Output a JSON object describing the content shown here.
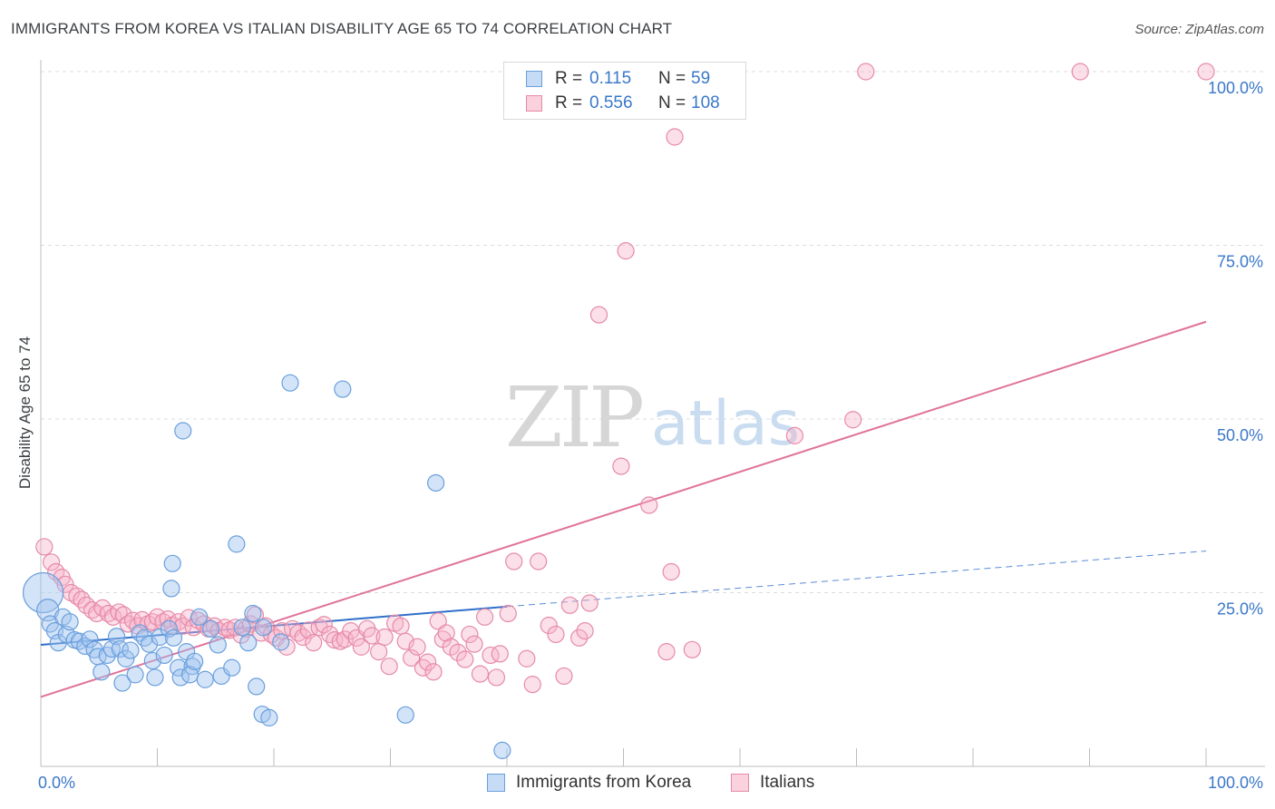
{
  "title": "IMMIGRANTS FROM KOREA VS ITALIAN DISABILITY AGE 65 TO 74 CORRELATION CHART",
  "source": "Source: ZipAtlas.com",
  "watermark": {
    "zip": "ZIP",
    "atlas": "atlas"
  },
  "legend": {
    "rows": [
      {
        "r_label": "R =",
        "r_value": "0.115",
        "n_label": "N =",
        "n_value": "59"
      },
      {
        "r_label": "R =",
        "r_value": "0.556",
        "n_label": "N =",
        "n_value": "108"
      }
    ]
  },
  "bottom_legend": [
    "Immigrants from Korea",
    "Italians"
  ],
  "colors": {
    "korea_fill": "rgba(160,196,240,0.45)",
    "korea_stroke": "#6a9fdc",
    "korea_line": "#2f6fcb",
    "italians_fill": "rgba(248,178,200,0.40)",
    "italians_stroke": "#e58aa8",
    "italians_line": "#e0729a",
    "tick_label": "#3a78c9",
    "grid": "#dcdcdc"
  },
  "chart_data": {
    "type": "scatter",
    "title": "IMMIGRANTS FROM KOREA VS ITALIAN DISABILITY AGE 65 TO 74 CORRELATION CHART",
    "xlabel": "",
    "ylabel": "Disability Age 65 to 74",
    "xlim": [
      0,
      100
    ],
    "ylim": [
      0,
      100
    ],
    "x_tick_labels": [
      "0.0%",
      "100.0%"
    ],
    "y_ticks": [
      25,
      50,
      75,
      100
    ],
    "y_tick_labels": [
      "25.0%",
      "50.0%",
      "75.0%",
      "100.0%"
    ],
    "grid": true,
    "legend_position": "top-center",
    "series": [
      {
        "name": "Immigrants from Korea",
        "R": 0.115,
        "N": 59,
        "trend": {
          "x": [
            0,
            40
          ],
          "y": [
            17.5,
            23.0
          ],
          "dashed_extension": {
            "x": [
              40,
              100
            ],
            "y": [
              23.0,
              31.0
            ]
          }
        },
        "points": [
          [
            0.2,
            25.0,
            22
          ],
          [
            0.6,
            22.5,
            12
          ],
          [
            0.8,
            20.5,
            9
          ],
          [
            1.2,
            19.5,
            9
          ],
          [
            1.5,
            17.8,
            9
          ],
          [
            1.9,
            21.5,
            9
          ],
          [
            2.2,
            19.0,
            9
          ],
          [
            2.5,
            20.8,
            9
          ],
          [
            2.9,
            18.2,
            9
          ],
          [
            3.3,
            18.0,
            9
          ],
          [
            3.8,
            17.3,
            9
          ],
          [
            4.2,
            18.3,
            9
          ],
          [
            4.6,
            16.8,
            9
          ],
          [
            4.9,
            15.8,
            9
          ],
          [
            5.2,
            13.6,
            9
          ],
          [
            5.7,
            16.0,
            9
          ],
          [
            6.1,
            16.9,
            9
          ],
          [
            6.5,
            18.7,
            9
          ],
          [
            6.8,
            16.9,
            9
          ],
          [
            7.0,
            12.0,
            9
          ],
          [
            7.3,
            15.5,
            9
          ],
          [
            7.7,
            16.7,
            9
          ],
          [
            8.1,
            13.2,
            9
          ],
          [
            8.5,
            19.2,
            9
          ],
          [
            8.9,
            18.5,
            9
          ],
          [
            9.3,
            17.6,
            9
          ],
          [
            9.6,
            15.2,
            9
          ],
          [
            9.8,
            12.8,
            9
          ],
          [
            10.2,
            18.6,
            9
          ],
          [
            10.6,
            16.0,
            9
          ],
          [
            11.0,
            19.8,
            9
          ],
          [
            11.4,
            18.5,
            9
          ],
          [
            11.8,
            14.2,
            9
          ],
          [
            12.0,
            12.8,
            9
          ],
          [
            12.5,
            16.5,
            9
          ],
          [
            13.0,
            14.4,
            9
          ],
          [
            12.2,
            48.3,
            9
          ],
          [
            11.3,
            29.2,
            9
          ],
          [
            11.2,
            25.6,
            9
          ],
          [
            12.8,
            13.2,
            9
          ],
          [
            13.2,
            15.1,
            9
          ],
          [
            13.6,
            21.5,
            9
          ],
          [
            14.1,
            12.5,
            9
          ],
          [
            14.6,
            19.8,
            9
          ],
          [
            15.2,
            17.5,
            9
          ],
          [
            15.5,
            13.0,
            9
          ],
          [
            16.4,
            14.2,
            9
          ],
          [
            16.8,
            32.0,
            9
          ],
          [
            17.3,
            20.0,
            9
          ],
          [
            17.8,
            17.8,
            9
          ],
          [
            18.2,
            22.0,
            9
          ],
          [
            18.5,
            11.5,
            9
          ],
          [
            19.1,
            20.0,
            9
          ],
          [
            19.0,
            7.5,
            9
          ],
          [
            19.6,
            7.0,
            9
          ],
          [
            20.6,
            17.9,
            9
          ],
          [
            21.4,
            55.2,
            9
          ],
          [
            25.9,
            54.3,
            9
          ],
          [
            33.9,
            40.8,
            9
          ],
          [
            31.3,
            7.4,
            9
          ],
          [
            39.6,
            2.3,
            9
          ]
        ]
      },
      {
        "name": "Italians",
        "R": 0.556,
        "N": 108,
        "trend": {
          "x": [
            0,
            100
          ],
          "y": [
            10.0,
            64.0
          ]
        },
        "points": [
          [
            0.3,
            31.6,
            9
          ],
          [
            0.9,
            29.4,
            9
          ],
          [
            1.3,
            28.0,
            9
          ],
          [
            1.8,
            27.2,
            9
          ],
          [
            2.1,
            26.2,
            9
          ],
          [
            2.6,
            25.0,
            9
          ],
          [
            3.1,
            24.5,
            9
          ],
          [
            3.5,
            24.0,
            9
          ],
          [
            3.9,
            23.2,
            9
          ],
          [
            4.4,
            22.5,
            9
          ],
          [
            4.8,
            22.0,
            9
          ],
          [
            5.3,
            22.8,
            9
          ],
          [
            5.8,
            22.0,
            9
          ],
          [
            6.2,
            21.5,
            9
          ],
          [
            6.7,
            22.2,
            9
          ],
          [
            7.1,
            21.8,
            9
          ],
          [
            7.5,
            20.5,
            9
          ],
          [
            7.9,
            21.0,
            9
          ],
          [
            8.3,
            20.2,
            9
          ],
          [
            8.7,
            21.1,
            9
          ],
          [
            9.2,
            20.5,
            9
          ],
          [
            9.6,
            20.8,
            9
          ],
          [
            10.0,
            21.5,
            9
          ],
          [
            10.5,
            20.8,
            9
          ],
          [
            10.9,
            21.2,
            9
          ],
          [
            11.3,
            20.3,
            9
          ],
          [
            11.8,
            20.8,
            9
          ],
          [
            12.2,
            20.2,
            9
          ],
          [
            12.7,
            21.4,
            9
          ],
          [
            13.1,
            20.0,
            9
          ],
          [
            13.5,
            21.0,
            9
          ],
          [
            14.0,
            20.5,
            9
          ],
          [
            14.4,
            19.8,
            9
          ],
          [
            14.9,
            20.2,
            9
          ],
          [
            15.3,
            19.5,
            9
          ],
          [
            15.8,
            20.0,
            9
          ],
          [
            16.2,
            19.6,
            9
          ],
          [
            16.7,
            20.0,
            9
          ],
          [
            17.2,
            18.9,
            9
          ],
          [
            17.6,
            19.8,
            9
          ],
          [
            18.0,
            20.5,
            9
          ],
          [
            18.4,
            21.8,
            9
          ],
          [
            18.9,
            19.2,
            9
          ],
          [
            19.3,
            20.2,
            9
          ],
          [
            19.8,
            19.0,
            9
          ],
          [
            20.2,
            18.5,
            9
          ],
          [
            20.7,
            19.5,
            9
          ],
          [
            21.1,
            17.2,
            9
          ],
          [
            21.6,
            19.8,
            9
          ],
          [
            22.1,
            19.2,
            9
          ],
          [
            22.5,
            18.6,
            9
          ],
          [
            23.0,
            19.6,
            9
          ],
          [
            23.4,
            17.8,
            9
          ],
          [
            23.9,
            20.0,
            9
          ],
          [
            24.3,
            20.4,
            9
          ],
          [
            24.8,
            19.0,
            9
          ],
          [
            25.2,
            18.2,
            9
          ],
          [
            25.7,
            18.0,
            9
          ],
          [
            26.1,
            18.3,
            9
          ],
          [
            26.6,
            19.5,
            9
          ],
          [
            27.1,
            18.5,
            9
          ],
          [
            27.5,
            17.2,
            9
          ],
          [
            28.0,
            19.8,
            9
          ],
          [
            28.4,
            18.8,
            9
          ],
          [
            29.0,
            16.5,
            9
          ],
          [
            29.5,
            18.6,
            9
          ],
          [
            29.9,
            14.4,
            9
          ],
          [
            30.4,
            20.6,
            9
          ],
          [
            30.9,
            20.2,
            9
          ],
          [
            31.3,
            18.0,
            9
          ],
          [
            31.8,
            15.6,
            9
          ],
          [
            32.3,
            17.2,
            9
          ],
          [
            32.8,
            14.2,
            9
          ],
          [
            33.2,
            15.0,
            9
          ],
          [
            33.7,
            13.6,
            9
          ],
          [
            34.1,
            20.9,
            9
          ],
          [
            34.5,
            18.3,
            9
          ],
          [
            34.8,
            19.2,
            9
          ],
          [
            35.2,
            17.2,
            9
          ],
          [
            35.8,
            16.4,
            9
          ],
          [
            36.4,
            15.4,
            9
          ],
          [
            36.8,
            19.0,
            9
          ],
          [
            37.2,
            17.6,
            9
          ],
          [
            37.7,
            13.3,
            9
          ],
          [
            38.1,
            21.5,
            9
          ],
          [
            38.6,
            16.0,
            9
          ],
          [
            39.1,
            12.8,
            9
          ],
          [
            39.4,
            16.2,
            9
          ],
          [
            40.1,
            22.0,
            9
          ],
          [
            40.6,
            29.5,
            9
          ],
          [
            41.7,
            15.5,
            9
          ],
          [
            42.2,
            11.8,
            9
          ],
          [
            42.7,
            29.5,
            9
          ],
          [
            43.6,
            20.3,
            9
          ],
          [
            44.2,
            19.0,
            9
          ],
          [
            44.9,
            13.0,
            9
          ],
          [
            45.4,
            23.2,
            9
          ],
          [
            46.2,
            18.5,
            9
          ],
          [
            46.7,
            19.5,
            9
          ],
          [
            47.1,
            23.5,
            9
          ],
          [
            47.9,
            65.0,
            9
          ],
          [
            49.8,
            43.2,
            9
          ],
          [
            50.2,
            74.2,
            9
          ],
          [
            52.2,
            37.6,
            9
          ],
          [
            53.7,
            16.5,
            9
          ],
          [
            54.1,
            28.0,
            9
          ],
          [
            54.4,
            90.6,
            9
          ],
          [
            55.9,
            16.8,
            9
          ],
          [
            64.7,
            47.6,
            9
          ],
          [
            69.7,
            49.9,
            9
          ],
          [
            70.8,
            100.0,
            9
          ],
          [
            89.2,
            100.0,
            9
          ],
          [
            100.0,
            100.0,
            9
          ]
        ]
      }
    ]
  }
}
